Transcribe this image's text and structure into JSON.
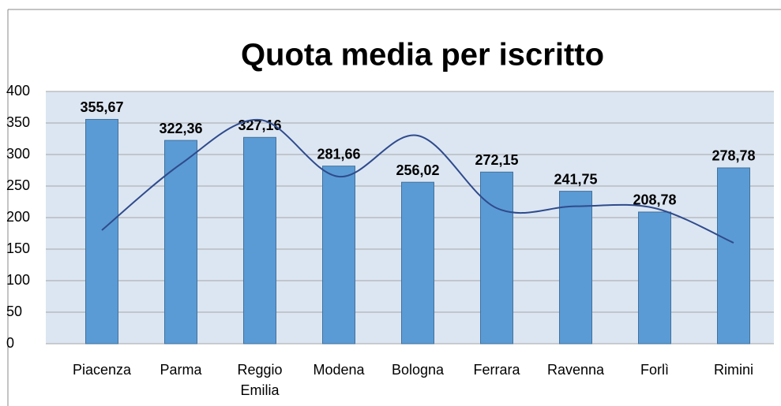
{
  "chart_data": {
    "type": "bar",
    "title": "Quota media per iscritto",
    "categories": [
      "Piacenza",
      "Parma",
      "Reggio Emilia",
      "Modena",
      "Bologna",
      "Ferrara",
      "Ravenna",
      "Forlì",
      "Rimini"
    ],
    "series": [
      {
        "type": "bar",
        "color": "#5b9bd5",
        "values": [
          355.67,
          322.36,
          327.16,
          281.66,
          256.02,
          272.15,
          241.75,
          208.78,
          278.78
        ],
        "value_labels": [
          "355,67",
          "322,36",
          "327,16",
          "281,66",
          "256,02",
          "272,15",
          "241,75",
          "208,78",
          "278,78"
        ]
      },
      {
        "type": "line",
        "color": "#2f4b8c",
        "values": [
          180,
          285,
          355,
          265,
          330,
          215,
          218,
          215,
          160
        ]
      }
    ],
    "ylim": [
      0,
      400
    ],
    "yticks": [
      0,
      50,
      100,
      150,
      200,
      250,
      300,
      350,
      400
    ],
    "grid": true
  }
}
